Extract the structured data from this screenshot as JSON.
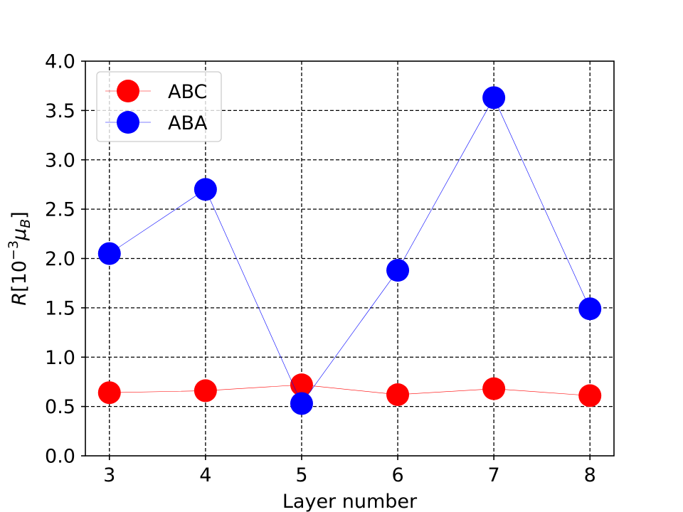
{
  "chart_data": {
    "type": "line",
    "x": [
      3,
      4,
      5,
      6,
      7,
      8
    ],
    "xlabel": "Layer number",
    "ylabel": "R[10^-3 μB]",
    "xlim": [
      2.75,
      8.25
    ],
    "ylim": [
      0.0,
      4.0
    ],
    "xticks": [
      "3",
      "4",
      "5",
      "6",
      "7",
      "8"
    ],
    "yticks": [
      "0.0",
      "0.5",
      "1.0",
      "1.5",
      "2.0",
      "2.5",
      "3.0",
      "3.5",
      "4.0"
    ],
    "grid": true,
    "legend_position": "top-left",
    "series": [
      {
        "name": "ABC",
        "color": "#ff0000",
        "values": [
          0.64,
          0.66,
          0.72,
          0.62,
          0.68,
          0.61
        ]
      },
      {
        "name": "ABA",
        "color": "#0000ff",
        "values": [
          2.05,
          2.7,
          0.53,
          1.88,
          3.63,
          1.49
        ]
      }
    ]
  }
}
